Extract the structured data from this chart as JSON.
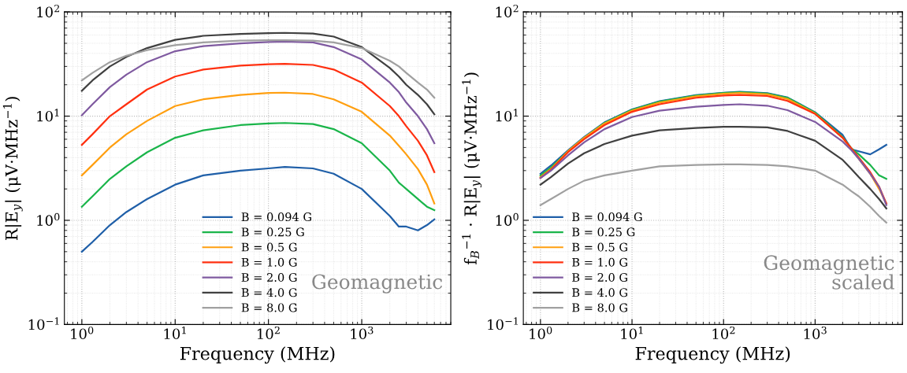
{
  "chart_data": [
    {
      "type": "line",
      "xlabel": "Frequency (MHz)",
      "ylabel": "R|E$_{y}$| (μV·MHz$^{−1}$)",
      "log": "xy",
      "grid": true,
      "legend": "bottom",
      "line_style": "solid",
      "x": [
        1,
        1.3,
        2,
        3,
        5,
        10,
        20,
        50,
        100,
        150,
        300,
        500,
        1000,
        2000,
        2500,
        3000,
        4000,
        5000,
        6000
      ],
      "xlim": [
        0.65,
        9000
      ],
      "xticks": [
        {
          "value": 1,
          "label": "10$^{0}$"
        },
        {
          "value": 10,
          "label": "10$^{1}$"
        },
        {
          "value": 100,
          "label": "10$^{2}$"
        },
        {
          "value": 1000,
          "label": "10$^{3}$"
        }
      ],
      "ylim": [
        0.1,
        100
      ],
      "yticks": [
        {
          "value": 0.1,
          "label": "10$^{−1}$"
        },
        {
          "value": 1,
          "label": "10$^{0}$"
        },
        {
          "value": 10,
          "label": "10$^{1}$"
        },
        {
          "value": 100,
          "label": "10$^{2}$"
        }
      ],
      "annotations": [
        "Geomagnetic"
      ],
      "series": [
        {
          "name": "B = 0.094 G",
          "color": "#1f5fa8",
          "values": [
            0.5,
            0.62,
            0.9,
            1.2,
            1.6,
            2.2,
            2.7,
            3.0,
            3.15,
            3.25,
            3.15,
            2.8,
            2.0,
            1.1,
            0.87,
            0.87,
            0.8,
            0.9,
            1.02
          ]
        },
        {
          "name": "B = 0.25 G",
          "color": "#1ab54a",
          "values": [
            1.35,
            1.7,
            2.5,
            3.3,
            4.5,
            6.2,
            7.3,
            8.2,
            8.5,
            8.6,
            8.4,
            7.5,
            5.5,
            3.0,
            2.3,
            2.0,
            1.6,
            1.35,
            1.25
          ]
        },
        {
          "name": "B = 0.5 G",
          "color": "#ff9f10",
          "values": [
            2.7,
            3.4,
            5.0,
            6.7,
            9.0,
            12.5,
            14.5,
            16.0,
            16.7,
            16.8,
            16.3,
            14.5,
            11.0,
            6.5,
            5.2,
            4.3,
            3.1,
            2.2,
            1.45
          ]
        },
        {
          "name": "B = 1.0 G",
          "color": "#ff3010",
          "values": [
            5.3,
            6.7,
            10.0,
            13.0,
            18.0,
            24.0,
            28.0,
            30.5,
            31.5,
            31.7,
            31.0,
            28.0,
            21.0,
            12.5,
            10.0,
            8.0,
            5.8,
            4.2,
            2.9
          ]
        },
        {
          "name": "B = 2.0 G",
          "color": "#7f5aa0",
          "values": [
            10.2,
            13.0,
            19.0,
            25.0,
            33.0,
            42.0,
            47.0,
            50.0,
            51.5,
            52.0,
            51.0,
            46.0,
            35.0,
            21.0,
            17.0,
            13.5,
            10.0,
            7.5,
            5.5
          ]
        },
        {
          "name": "B = 4.0 G",
          "color": "#404040",
          "values": [
            17.5,
            22.0,
            30.0,
            37.0,
            45.0,
            54.0,
            59.0,
            61.5,
            62.5,
            63.0,
            62.0,
            58.0,
            46.0,
            29.0,
            24.0,
            20.0,
            16.0,
            13.0,
            10.4
          ]
        },
        {
          "name": "B = 8.0 G",
          "color": "#a0a0a0",
          "values": [
            22.0,
            26.0,
            33.0,
            38.0,
            43.0,
            48.0,
            51.0,
            53.0,
            53.5,
            53.5,
            53.0,
            51.0,
            45.0,
            34.0,
            30.0,
            26.0,
            21.0,
            18.0,
            15.0
          ]
        }
      ]
    },
    {
      "type": "line",
      "xlabel": "Frequency (MHz)",
      "ylabel": "f$_{B}$$^{−1}$ · R|E$_{y}$| (μV·MHz$^{−1}$)",
      "log": "xy",
      "grid": true,
      "legend": "bottom left",
      "line_style": "solid",
      "x": [
        1,
        1.3,
        2,
        3,
        5,
        10,
        20,
        50,
        100,
        150,
        300,
        500,
        1000,
        2000,
        2500,
        3000,
        4000,
        5000,
        6000
      ],
      "xlim": [
        0.65,
        9000
      ],
      "xticks": [
        {
          "value": 1,
          "label": "10$^{0}$"
        },
        {
          "value": 10,
          "label": "10$^{1}$"
        },
        {
          "value": 100,
          "label": "10$^{2}$"
        },
        {
          "value": 1000,
          "label": "10$^{3}$"
        }
      ],
      "ylim": [
        0.1,
        100
      ],
      "yticks": [
        {
          "value": 0.1,
          "label": "10$^{−1}$"
        },
        {
          "value": 1,
          "label": "10$^{0}$"
        },
        {
          "value": 10,
          "label": "10$^{1}$"
        },
        {
          "value": 100,
          "label": "10$^{2}$"
        }
      ],
      "annotations": [
        "Geomagnetic\nscaled"
      ],
      "series": [
        {
          "name": "B = 0.094 G",
          "color": "#1f5fa8",
          "values": [
            2.8,
            3.35,
            4.7,
            6.3,
            8.7,
            11.6,
            13.9,
            15.9,
            16.8,
            17.1,
            16.6,
            15.1,
            10.9,
            6.6,
            4.8,
            4.6,
            4.3,
            4.8,
            5.3
          ]
        },
        {
          "name": "B = 0.25 G",
          "color": "#1ab54a",
          "values": [
            2.7,
            3.2,
            4.6,
            6.2,
            8.6,
            11.5,
            13.8,
            15.8,
            16.7,
            17.0,
            16.5,
            15.0,
            10.8,
            6.3,
            4.9,
            4.3,
            3.4,
            2.7,
            2.5
          ]
        },
        {
          "name": "B = 0.5 G",
          "color": "#ff9f10",
          "values": [
            2.6,
            3.1,
            4.6,
            6.2,
            8.5,
            11.3,
            13.5,
            15.5,
            16.4,
            16.7,
            16.2,
            14.6,
            10.6,
            6.2,
            4.8,
            3.9,
            2.8,
            2.0,
            1.45
          ]
        },
        {
          "name": "B = 1.0 G",
          "color": "#ff3010",
          "values": [
            2.55,
            3.05,
            4.5,
            6.0,
            8.2,
            11.0,
            13.0,
            15.0,
            15.8,
            16.0,
            15.6,
            14.0,
            10.5,
            6.2,
            4.9,
            4.0,
            2.9,
            2.1,
            1.45
          ]
        },
        {
          "name": "B = 2.0 G",
          "color": "#7f5aa0",
          "values": [
            2.55,
            3.0,
            4.2,
            5.6,
            7.5,
            9.8,
            11.3,
            12.3,
            12.8,
            13.0,
            12.6,
            11.4,
            8.8,
            5.7,
            4.7,
            3.9,
            2.8,
            2.1,
            1.4
          ]
        },
        {
          "name": "B = 4.0 G",
          "color": "#404040",
          "values": [
            2.2,
            2.6,
            3.5,
            4.4,
            5.4,
            6.5,
            7.3,
            7.7,
            7.9,
            7.9,
            7.8,
            7.2,
            5.8,
            3.8,
            3.1,
            2.6,
            2.0,
            1.6,
            1.3
          ]
        },
        {
          "name": "B = 8.0 G",
          "color": "#a0a0a0",
          "values": [
            1.4,
            1.6,
            2.0,
            2.4,
            2.7,
            3.0,
            3.3,
            3.4,
            3.45,
            3.45,
            3.4,
            3.3,
            3.0,
            2.2,
            1.9,
            1.7,
            1.35,
            1.1,
            0.95
          ]
        }
      ]
    }
  ]
}
